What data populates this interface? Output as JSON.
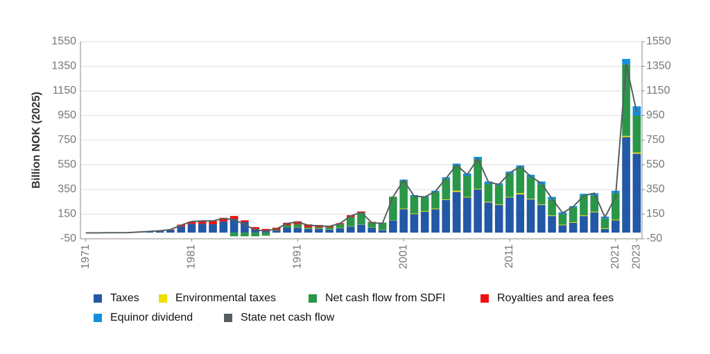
{
  "chart_data": {
    "type": "bar",
    "y_label": "Billion NOK (2025)",
    "categories": [
      "1971",
      null,
      null,
      null,
      null,
      null,
      null,
      null,
      null,
      null,
      "1981",
      null,
      null,
      null,
      null,
      null,
      null,
      null,
      null,
      null,
      "1991",
      null,
      null,
      null,
      null,
      null,
      null,
      null,
      null,
      null,
      "2001",
      null,
      null,
      null,
      null,
      null,
      null,
      null,
      null,
      null,
      "2011",
      null,
      null,
      null,
      null,
      null,
      null,
      null,
      null,
      null,
      "2021",
      null,
      "2023"
    ],
    "series": [
      {
        "name": "Taxes",
        "color": "#2258a5",
        "values": [
          0,
          0,
          0,
          0,
          0,
          4,
          8,
          10,
          20,
          50,
          70,
          72,
          68,
          90,
          110,
          85,
          30,
          10,
          15,
          40,
          40,
          30,
          30,
          25,
          35,
          50,
          65,
          40,
          20,
          100,
          190,
          150,
          170,
          190,
          265,
          330,
          285,
          350,
          245,
          225,
          285,
          310,
          270,
          225,
          135,
          60,
          80,
          135,
          165,
          30,
          100,
          775,
          640
        ]
      },
      {
        "name": "Environmental taxes",
        "color": "#f0e000",
        "values": [
          0,
          0,
          0,
          0,
          0,
          0,
          0,
          0,
          0,
          0,
          0,
          0,
          0,
          0,
          0,
          0,
          0,
          0,
          0,
          0,
          2,
          2,
          2,
          2,
          2,
          2,
          2,
          2,
          2,
          2,
          5,
          5,
          5,
          5,
          5,
          10,
          5,
          5,
          5,
          5,
          5,
          10,
          5,
          5,
          5,
          5,
          5,
          5,
          5,
          5,
          5,
          10,
          10
        ]
      },
      {
        "name": "Net cash flow from SDFI",
        "color": "#2a9648",
        "values": [
          0,
          0,
          0,
          0,
          0,
          0,
          0,
          0,
          0,
          0,
          0,
          0,
          0,
          0,
          -30,
          -30,
          -30,
          -25,
          5,
          20,
          25,
          10,
          10,
          15,
          30,
          75,
          95,
          40,
          60,
          190,
          225,
          140,
          110,
          135,
          165,
          205,
          170,
          240,
          145,
          155,
          190,
          210,
          175,
          160,
          130,
          85,
          120,
          160,
          130,
          80,
          215,
          580,
          300
        ]
      },
      {
        "name": "Royalties and area fees",
        "color": "#ee1111",
        "values": [
          0,
          0,
          0,
          0,
          0,
          2,
          4,
          5,
          5,
          15,
          20,
          23,
          27,
          30,
          25,
          15,
          15,
          20,
          20,
          20,
          25,
          25,
          20,
          15,
          10,
          15,
          10,
          5,
          0,
          0,
          0,
          0,
          0,
          0,
          0,
          0,
          0,
          0,
          0,
          0,
          0,
          0,
          0,
          0,
          0,
          0,
          0,
          0,
          0,
          0,
          0,
          0,
          0
        ]
      },
      {
        "name": "Equinor dividend",
        "color": "#1190dd",
        "values": [
          0,
          0,
          0,
          0,
          0,
          0,
          0,
          0,
          0,
          0,
          0,
          0,
          0,
          0,
          0,
          0,
          0,
          0,
          0,
          0,
          0,
          0,
          0,
          0,
          0,
          0,
          0,
          0,
          0,
          0,
          10,
          10,
          10,
          10,
          15,
          15,
          20,
          20,
          20,
          15,
          15,
          15,
          20,
          25,
          20,
          15,
          10,
          15,
          20,
          15,
          20,
          45,
          75
        ]
      },
      {
        "name": "State net cash flow",
        "color": "#555f61",
        "type": "line",
        "values": [
          -2,
          -2,
          -1,
          -1,
          0,
          5,
          10,
          15,
          25,
          60,
          90,
          95,
          95,
          115,
          105,
          65,
          20,
          15,
          30,
          75,
          85,
          60,
          55,
          50,
          75,
          135,
          165,
          80,
          75,
          290,
          425,
          295,
          290,
          335,
          440,
          550,
          470,
          600,
          410,
          390,
          485,
          535,
          455,
          400,
          275,
          160,
          210,
          300,
          320,
          125,
          290,
          1370,
          975
        ]
      }
    ],
    "ylim": [
      -50,
      1550
    ],
    "yticks": [
      -50,
      150,
      350,
      550,
      750,
      950,
      1150,
      1350,
      1550
    ],
    "y2lim": [
      -50,
      1550
    ],
    "y2ticks": [
      -50,
      150,
      350,
      550,
      750,
      950,
      1150,
      1350,
      1550
    ],
    "grid": true,
    "legend": "bottom"
  }
}
